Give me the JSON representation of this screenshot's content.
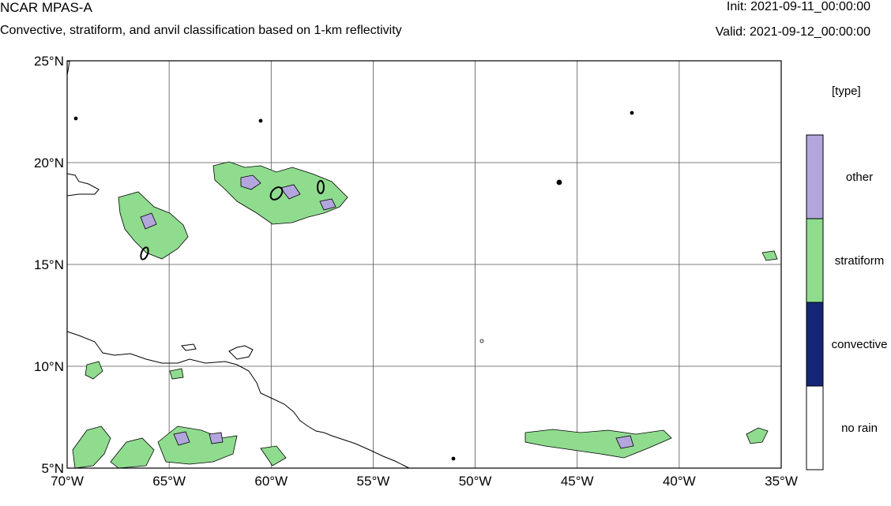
{
  "header": {
    "title": "NCAR MPAS-A",
    "subtitle": "Convective, stratiform, and anvil classification based on 1-km reflectivity",
    "init": "Init: 2021-09-11_00:00:00",
    "valid": "Valid: 2021-09-12_00:00:00"
  },
  "map": {
    "lon_range": [
      -70,
      -35
    ],
    "lat_range": [
      5,
      25
    ],
    "lon_ticks": [
      {
        "value": -70,
        "label": "70°W"
      },
      {
        "value": -65,
        "label": "65°W"
      },
      {
        "value": -60,
        "label": "60°W"
      },
      {
        "value": -55,
        "label": "55°W"
      },
      {
        "value": -50,
        "label": "50°W"
      },
      {
        "value": -45,
        "label": "45°W"
      },
      {
        "value": -40,
        "label": "40°W"
      },
      {
        "value": -35,
        "label": "35°W"
      }
    ],
    "lat_ticks": [
      {
        "value": 5,
        "label": "5°N"
      },
      {
        "value": 10,
        "label": "10°N"
      },
      {
        "value": 15,
        "label": "15°N"
      },
      {
        "value": 20,
        "label": "20°N"
      },
      {
        "value": 25,
        "label": "25°N"
      }
    ],
    "grid": true,
    "colors": {
      "stratiform": "#8fdc8f",
      "other": "#b3a6dc",
      "coast": "#000000"
    }
  },
  "colorbar": {
    "title": "[type]",
    "entries": [
      {
        "label": "other",
        "color": "#b3a6dc"
      },
      {
        "label": "stratiform",
        "color": "#8fdc8f"
      },
      {
        "label": "convective",
        "color": "#172577"
      },
      {
        "label": "no rain",
        "color": "#ffffff"
      }
    ]
  }
}
